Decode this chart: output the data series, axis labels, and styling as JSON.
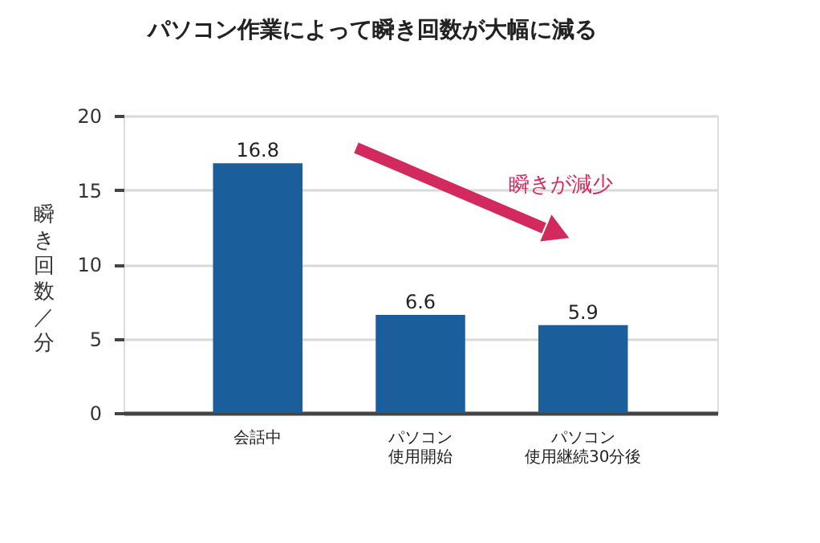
{
  "chart_data": {
    "type": "bar",
    "title": "パソコン作業によって瞬き回数が大幅に減る",
    "ylabel": "瞬き回数／分",
    "categories": [
      "会話中",
      "パソコン使用開始",
      "パソコン使用継続30分後"
    ],
    "values": [
      16.8,
      6.6,
      5.9
    ],
    "color": "#1b5e9c",
    "ylim": [
      0,
      20
    ],
    "yticks": [
      0,
      5,
      10,
      15,
      20
    ],
    "grid": "y",
    "data_labels": true,
    "annotations": [
      "瞬きが減少"
    ]
  }
}
